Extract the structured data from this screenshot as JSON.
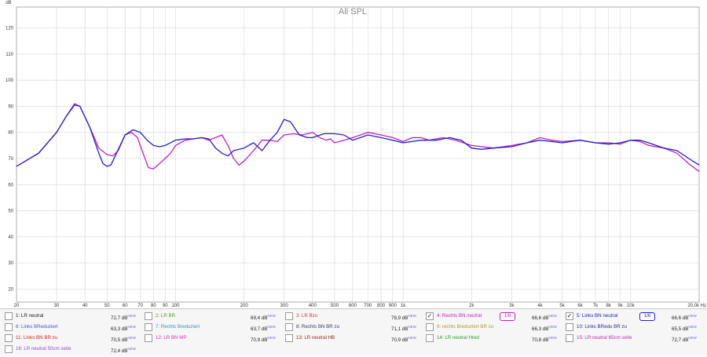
{
  "chart_data": {
    "type": "line",
    "title": "All SPL",
    "ylabel": "dB",
    "xlabel": "Hz",
    "xscale": "log",
    "xlim": [
      20,
      20000
    ],
    "ylim": [
      15,
      128
    ],
    "grid": true,
    "y_ticks": [
      20,
      30,
      40,
      50,
      60,
      70,
      80,
      90,
      100,
      110,
      120
    ],
    "x_ticks": [
      {
        "v": 20,
        "label": "20"
      },
      {
        "v": 30,
        "label": "30"
      },
      {
        "v": 40,
        "label": "40"
      },
      {
        "v": 50,
        "label": "50"
      },
      {
        "v": 60,
        "label": "60"
      },
      {
        "v": 70,
        "label": "70"
      },
      {
        "v": 80,
        "label": "80"
      },
      {
        "v": 90,
        "label": "90"
      },
      {
        "v": 100,
        "label": "100"
      },
      {
        "v": 200,
        "label": "200"
      },
      {
        "v": 300,
        "label": "300"
      },
      {
        "v": 400,
        "label": "400"
      },
      {
        "v": 500,
        "label": "500"
      },
      {
        "v": 600,
        "label": "600"
      },
      {
        "v": 700,
        "label": "700"
      },
      {
        "v": 800,
        "label": "800"
      },
      {
        "v": 900,
        "label": "900"
      },
      {
        "v": 1000,
        "label": "1k"
      },
      {
        "v": 2000,
        "label": "2k"
      },
      {
        "v": 3000,
        "label": "3k"
      },
      {
        "v": 4000,
        "label": "4k"
      },
      {
        "v": 5000,
        "label": "5k"
      },
      {
        "v": 6000,
        "label": "6k"
      },
      {
        "v": 7000,
        "label": "7k"
      },
      {
        "v": 8000,
        "label": "8k"
      },
      {
        "v": 9000,
        "label": "9k"
      },
      {
        "v": 10000,
        "label": "10k"
      },
      {
        "v": 20000,
        "label": "20,0k Hz"
      }
    ],
    "series": [
      {
        "name": "4: Rechts BN neutral",
        "color": "#c020c0",
        "points": [
          [
            20,
            67
          ],
          [
            25,
            72
          ],
          [
            30,
            80
          ],
          [
            33,
            86
          ],
          [
            36,
            91
          ],
          [
            38,
            90
          ],
          [
            42,
            82
          ],
          [
            46,
            74
          ],
          [
            50,
            71.5
          ],
          [
            53,
            71
          ],
          [
            56,
            73
          ],
          [
            60,
            79
          ],
          [
            64,
            80
          ],
          [
            68,
            78
          ],
          [
            72,
            72
          ],
          [
            76,
            66.5
          ],
          [
            80,
            66
          ],
          [
            85,
            68
          ],
          [
            90,
            70
          ],
          [
            95,
            72
          ],
          [
            100,
            75
          ],
          [
            110,
            77
          ],
          [
            120,
            77.5
          ],
          [
            130,
            78
          ],
          [
            140,
            77
          ],
          [
            150,
            78
          ],
          [
            160,
            79
          ],
          [
            170,
            75
          ],
          [
            180,
            70
          ],
          [
            190,
            67.5
          ],
          [
            200,
            69
          ],
          [
            220,
            73
          ],
          [
            240,
            77
          ],
          [
            260,
            77
          ],
          [
            280,
            76.5
          ],
          [
            300,
            79
          ],
          [
            330,
            79.5
          ],
          [
            360,
            79
          ],
          [
            400,
            80
          ],
          [
            430,
            78
          ],
          [
            460,
            77
          ],
          [
            480,
            77.5
          ],
          [
            500,
            76
          ],
          [
            550,
            77
          ],
          [
            600,
            78
          ],
          [
            650,
            79
          ],
          [
            700,
            80
          ],
          [
            800,
            79
          ],
          [
            900,
            78
          ],
          [
            1000,
            76.5
          ],
          [
            1100,
            78
          ],
          [
            1200,
            78
          ],
          [
            1300,
            77
          ],
          [
            1500,
            78
          ],
          [
            1700,
            77
          ],
          [
            2000,
            75
          ],
          [
            2500,
            74
          ],
          [
            3000,
            75
          ],
          [
            3500,
            76
          ],
          [
            4000,
            78
          ],
          [
            4500,
            77
          ],
          [
            5000,
            76.5
          ],
          [
            6000,
            77
          ],
          [
            7000,
            76
          ],
          [
            8000,
            76
          ],
          [
            9000,
            75.5
          ],
          [
            10000,
            77
          ],
          [
            11000,
            76.5
          ],
          [
            12000,
            75
          ],
          [
            14000,
            74
          ],
          [
            16000,
            72
          ],
          [
            18000,
            68
          ],
          [
            20000,
            65
          ]
        ]
      },
      {
        "name": "5: Links BN neutral",
        "color": "#2020c8",
        "points": [
          [
            20,
            67
          ],
          [
            25,
            72
          ],
          [
            30,
            80
          ],
          [
            33,
            86
          ],
          [
            36,
            90.5
          ],
          [
            38,
            90
          ],
          [
            42,
            82
          ],
          [
            46,
            72
          ],
          [
            48,
            68
          ],
          [
            50,
            67
          ],
          [
            52,
            67.5
          ],
          [
            55,
            72
          ],
          [
            60,
            79
          ],
          [
            65,
            81
          ],
          [
            70,
            80
          ],
          [
            75,
            77
          ],
          [
            80,
            75
          ],
          [
            85,
            74.5
          ],
          [
            90,
            75
          ],
          [
            100,
            77
          ],
          [
            110,
            77.5
          ],
          [
            120,
            77.5
          ],
          [
            130,
            78
          ],
          [
            140,
            77.5
          ],
          [
            150,
            74
          ],
          [
            160,
            72
          ],
          [
            170,
            71
          ],
          [
            180,
            73
          ],
          [
            200,
            74
          ],
          [
            220,
            76
          ],
          [
            240,
            73
          ],
          [
            260,
            77
          ],
          [
            280,
            80
          ],
          [
            300,
            85
          ],
          [
            320,
            84
          ],
          [
            350,
            79
          ],
          [
            380,
            78
          ],
          [
            400,
            78
          ],
          [
            450,
            79.5
          ],
          [
            500,
            79.5
          ],
          [
            550,
            79
          ],
          [
            600,
            77
          ],
          [
            700,
            79
          ],
          [
            800,
            78
          ],
          [
            900,
            77
          ],
          [
            1000,
            76
          ],
          [
            1200,
            77
          ],
          [
            1400,
            77
          ],
          [
            1600,
            78
          ],
          [
            1800,
            77
          ],
          [
            2000,
            74
          ],
          [
            2200,
            73.5
          ],
          [
            2500,
            74
          ],
          [
            3000,
            74.5
          ],
          [
            3500,
            76
          ],
          [
            4000,
            77
          ],
          [
            4500,
            76.5
          ],
          [
            5000,
            76
          ],
          [
            6000,
            77
          ],
          [
            7000,
            76
          ],
          [
            8000,
            75.5
          ],
          [
            9000,
            76
          ],
          [
            10000,
            77
          ],
          [
            11000,
            77
          ],
          [
            12000,
            76
          ],
          [
            14000,
            74
          ],
          [
            16000,
            73
          ],
          [
            18000,
            70
          ],
          [
            20000,
            67.5
          ]
        ]
      }
    ]
  },
  "legend": [
    {
      "label": "1: LR neutral",
      "value": "72,7 dB",
      "sup": "NEW",
      "color": "#222222",
      "checked": false,
      "smooth": ""
    },
    {
      "label": "2: LR BR",
      "value": "69,4 dB",
      "sup": "NEW",
      "color": "#5a9a2a",
      "checked": false,
      "smooth": ""
    },
    {
      "label": "3: LR Bzu",
      "value": "78,9 dB",
      "sup": "NEW",
      "color": "#d83050",
      "checked": false,
      "smooth": ""
    },
    {
      "label": "4: Rechts BN neutral",
      "value": "66,6 dB",
      "sup": "NEW",
      "color": "#c020c0",
      "checked": true,
      "smooth": "1/6"
    },
    {
      "label": "5: Links BN neutral",
      "value": "66,6 dB",
      "sup": "NEW",
      "color": "#2020c8",
      "checked": true,
      "smooth": "1/6"
    },
    {
      "label": "6: Links BReduziert",
      "value": "63,3 dB",
      "sup": "NEW",
      "color": "#3a5ad8",
      "checked": false,
      "smooth": ""
    },
    {
      "label": "7: Rechts Breduziert",
      "value": "63,7 dB",
      "sup": "NEW",
      "color": "#2a9ab0",
      "checked": false,
      "smooth": ""
    },
    {
      "label": "8: Rechts BN BR zu",
      "value": "71,1 dB",
      "sup": "NEW",
      "color": "#303a70",
      "checked": false,
      "smooth": ""
    },
    {
      "label": "9: rechts Breduziert BR zu",
      "value": "66,3 dB",
      "sup": "NEW",
      "color": "#b09a20",
      "checked": false,
      "smooth": ""
    },
    {
      "label": "10: Links BRedu BR zu",
      "value": "65,5 dB",
      "sup": "NEW",
      "color": "#2a2a9a",
      "checked": false,
      "smooth": ""
    },
    {
      "label": "11: Links BN BR zu",
      "value": "70,5 dB",
      "sup": "NEW",
      "color": "#e02020",
      "checked": false,
      "smooth": ""
    },
    {
      "label": "12: LR BN MP",
      "value": "70,9 dB",
      "sup": "NEW",
      "color": "#d03aa8",
      "checked": false,
      "smooth": ""
    },
    {
      "label": "13: LR neutral HB",
      "value": "70,9 dB",
      "sup": "NEW",
      "color": "#a02020",
      "checked": false,
      "smooth": ""
    },
    {
      "label": "14: LR neutral Hred",
      "value": "70,8 dB",
      "sup": "NEW",
      "color": "#2a9a2a",
      "checked": false,
      "smooth": ""
    },
    {
      "label": "15: LR neutral 65cm seite",
      "value": "72,7 dB",
      "sup": "NEW",
      "color": "#c02ab0",
      "checked": false,
      "smooth": ""
    },
    {
      "label": "16: LR neutral 50cm seite",
      "value": "72,4 dB",
      "sup": "NEW",
      "color": "#9a4ad0",
      "checked": false,
      "smooth": ""
    }
  ]
}
